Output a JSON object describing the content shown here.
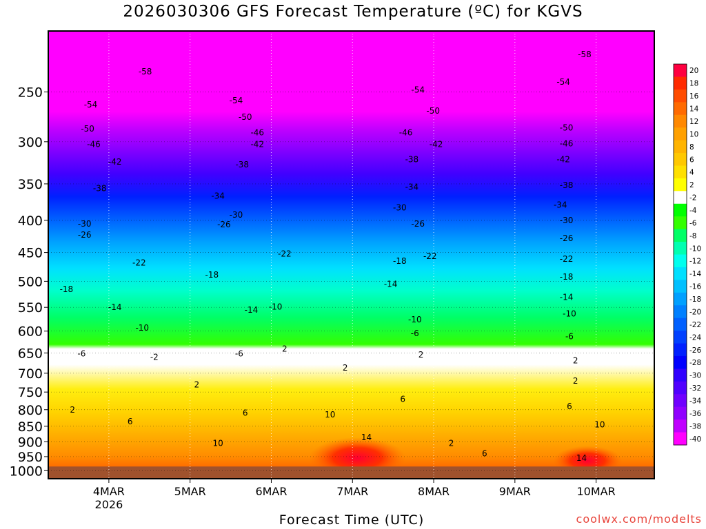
{
  "chart_data": {
    "type": "heatmap",
    "title": "2026030306 GFS Forecast Temperature (ºC) for KGVS",
    "xlabel": "Forecast Time (UTC)",
    "ylabel": "",
    "credit": "coolwx.com/modelts",
    "x_ticks": [
      {
        "label": "4MAR",
        "sub": "2026"
      },
      {
        "label": "5MAR",
        "sub": ""
      },
      {
        "label": "6MAR",
        "sub": ""
      },
      {
        "label": "7MAR",
        "sub": ""
      },
      {
        "label": "8MAR",
        "sub": ""
      },
      {
        "label": "9MAR",
        "sub": ""
      },
      {
        "label": "10MAR",
        "sub": ""
      }
    ],
    "pressure_levels": [
      1000,
      950,
      900,
      850,
      800,
      750,
      700,
      650,
      600,
      550,
      500,
      450,
      400,
      350,
      300,
      250
    ],
    "ylim": [
      1030,
      200
    ],
    "grid": true,
    "colorbar": {
      "labels": [
        "20",
        "18",
        "16",
        "14",
        "12",
        "10",
        "8",
        "6",
        "4",
        "2",
        "-2",
        "-4",
        "-6",
        "-8",
        "-10",
        "-12",
        "-14",
        "-16",
        "-18",
        "-20",
        "-22",
        "-24",
        "-26",
        "-28",
        "-30",
        "-32",
        "-34",
        "-36",
        "-38",
        "-40"
      ],
      "colors": [
        "#ff0040",
        "#ff2a00",
        "#ff4c00",
        "#ff6a00",
        "#ff8800",
        "#ffa000",
        "#ffb400",
        "#ffc800",
        "#ffe000",
        "#ffff00",
        "#ffffff",
        "#00ff00",
        "#33ff00",
        "#00ff66",
        "#00ffb0",
        "#00ffee",
        "#00e0ff",
        "#00c0ff",
        "#00a0ff",
        "#0080ff",
        "#0060ff",
        "#0040ff",
        "#0020ff",
        "#0000ff",
        "#3000ff",
        "#5000ff",
        "#7000ff",
        "#9000ff",
        "#c000ff",
        "#ff00ff"
      ]
    },
    "isotherm_labels": [
      {
        "text": "-58",
        "x": 0.16,
        "p": 232
      },
      {
        "text": "-58",
        "x": 0.885,
        "p": 218
      },
      {
        "text": "-54",
        "x": 0.07,
        "p": 262
      },
      {
        "text": "-54",
        "x": 0.31,
        "p": 258
      },
      {
        "text": "-54",
        "x": 0.61,
        "p": 248
      },
      {
        "text": "-54",
        "x": 0.85,
        "p": 241
      },
      {
        "text": "-50",
        "x": 0.065,
        "p": 286
      },
      {
        "text": "-50",
        "x": 0.325,
        "p": 274
      },
      {
        "text": "-50",
        "x": 0.635,
        "p": 268
      },
      {
        "text": "-50",
        "x": 0.855,
        "p": 285
      },
      {
        "text": "-46",
        "x": 0.075,
        "p": 303
      },
      {
        "text": "-46",
        "x": 0.345,
        "p": 290
      },
      {
        "text": "-46",
        "x": 0.59,
        "p": 290
      },
      {
        "text": "-46",
        "x": 0.855,
        "p": 302
      },
      {
        "text": "-42",
        "x": 0.11,
        "p": 323
      },
      {
        "text": "-42",
        "x": 0.345,
        "p": 303
      },
      {
        "text": "-42",
        "x": 0.64,
        "p": 303
      },
      {
        "text": "-42",
        "x": 0.85,
        "p": 320
      },
      {
        "text": "-38",
        "x": 0.085,
        "p": 356
      },
      {
        "text": "-38",
        "x": 0.32,
        "p": 326
      },
      {
        "text": "-38",
        "x": 0.6,
        "p": 320
      },
      {
        "text": "-38",
        "x": 0.855,
        "p": 352
      },
      {
        "text": "-34",
        "x": 0.28,
        "p": 366
      },
      {
        "text": "-34",
        "x": 0.6,
        "p": 354
      },
      {
        "text": "-34",
        "x": 0.845,
        "p": 378
      },
      {
        "text": "-30",
        "x": 0.06,
        "p": 405
      },
      {
        "text": "-30",
        "x": 0.31,
        "p": 392
      },
      {
        "text": "-30",
        "x": 0.58,
        "p": 382
      },
      {
        "text": "-30",
        "x": 0.855,
        "p": 400
      },
      {
        "text": "-26",
        "x": 0.06,
        "p": 422
      },
      {
        "text": "-26",
        "x": 0.29,
        "p": 406
      },
      {
        "text": "-26",
        "x": 0.61,
        "p": 405
      },
      {
        "text": "-26",
        "x": 0.855,
        "p": 427
      },
      {
        "text": "-22",
        "x": 0.15,
        "p": 467
      },
      {
        "text": "-22",
        "x": 0.39,
        "p": 452
      },
      {
        "text": "-22",
        "x": 0.63,
        "p": 456
      },
      {
        "text": "-22",
        "x": 0.855,
        "p": 461
      },
      {
        "text": "-18",
        "x": 0.03,
        "p": 515
      },
      {
        "text": "-18",
        "x": 0.27,
        "p": 488
      },
      {
        "text": "-18",
        "x": 0.58,
        "p": 464
      },
      {
        "text": "-18",
        "x": 0.855,
        "p": 492
      },
      {
        "text": "-14",
        "x": 0.11,
        "p": 550
      },
      {
        "text": "-14",
        "x": 0.335,
        "p": 555
      },
      {
        "text": "-14",
        "x": 0.565,
        "p": 505
      },
      {
        "text": "-14",
        "x": 0.855,
        "p": 530
      },
      {
        "text": "-10",
        "x": 0.155,
        "p": 593
      },
      {
        "text": "-10",
        "x": 0.375,
        "p": 549
      },
      {
        "text": "-10",
        "x": 0.605,
        "p": 575
      },
      {
        "text": "-10",
        "x": 0.86,
        "p": 563
      },
      {
        "text": "-6",
        "x": 0.055,
        "p": 652
      },
      {
        "text": "-6",
        "x": 0.315,
        "p": 652
      },
      {
        "text": "-6",
        "x": 0.605,
        "p": 605
      },
      {
        "text": "-6",
        "x": 0.86,
        "p": 612
      },
      {
        "text": "-2",
        "x": 0.175,
        "p": 660
      },
      {
        "text": "2",
        "x": 0.39,
        "p": 640
      },
      {
        "text": "2",
        "x": 0.49,
        "p": 686
      },
      {
        "text": "2",
        "x": 0.615,
        "p": 654
      },
      {
        "text": "2",
        "x": 0.87,
        "p": 668
      },
      {
        "text": "2",
        "x": 0.245,
        "p": 730
      },
      {
        "text": "2",
        "x": 0.87,
        "p": 720
      },
      {
        "text": "2",
        "x": 0.04,
        "p": 800
      },
      {
        "text": "2",
        "x": 0.665,
        "p": 905
      },
      {
        "text": "6",
        "x": 0.135,
        "p": 835
      },
      {
        "text": "6",
        "x": 0.325,
        "p": 810
      },
      {
        "text": "6",
        "x": 0.585,
        "p": 770
      },
      {
        "text": "6",
        "x": 0.86,
        "p": 790
      },
      {
        "text": "6",
        "x": 0.72,
        "p": 940
      },
      {
        "text": "10",
        "x": 0.28,
        "p": 905
      },
      {
        "text": "10",
        "x": 0.465,
        "p": 815
      },
      {
        "text": "10",
        "x": 0.91,
        "p": 845
      },
      {
        "text": "14",
        "x": 0.525,
        "p": 885
      },
      {
        "text": "14",
        "x": 0.88,
        "p": 955
      }
    ]
  }
}
